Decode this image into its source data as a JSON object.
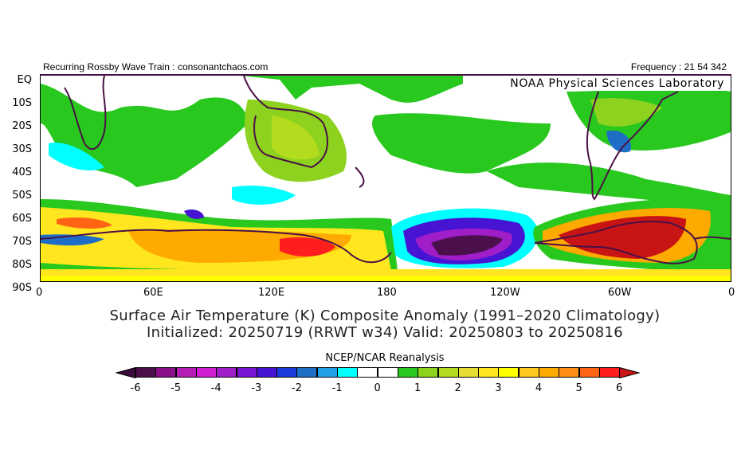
{
  "header": {
    "left": "Recurring Rossby Wave Train : consonantchaos.com",
    "right": "Frequency : 21 54 342",
    "lab": "NOAA Physical Sciences Laboratory"
  },
  "map": {
    "lat_labels": [
      "EQ",
      "10S",
      "20S",
      "30S",
      "40S",
      "50S",
      "60S",
      "70S",
      "80S",
      "90S"
    ],
    "lon_labels": [
      "0",
      "60E",
      "120E",
      "180",
      "120W",
      "60W",
      "0"
    ],
    "title_line1": "Surface Air Temperature (K) Composite Anomaly (1991–2020 Climatology)",
    "title_line2": "Initialized: 20250719 (RRWT w34) Valid: 20250803 to 20250816",
    "coast_color": "#4a1046"
  },
  "colorbar": {
    "title": "NCEP/NCAR Reanalysis",
    "ticks": [
      "-6",
      "-5",
      "-4",
      "-3",
      "-2",
      "-1",
      "0",
      "1",
      "2",
      "3",
      "4",
      "5",
      "6"
    ],
    "low_triangle": "#3c0a3c",
    "high_triangle": "#c81414",
    "colors": [
      "#4b0f4b",
      "#8c0f8c",
      "#b41eb4",
      "#d21ed2",
      "#a01ec8",
      "#7814d2",
      "#4614d2",
      "#1e3cdc",
      "#1e6ec8",
      "#1ea0e6",
      "#00ffff",
      "#ffffff",
      "#ffffff",
      "#28c81e",
      "#8cd21e",
      "#b4dc1e",
      "#e6dc32",
      "#ffe61e",
      "#ffff00",
      "#ffc81e",
      "#ffaa00",
      "#ff8c14",
      "#ff6414",
      "#ff1e1e"
    ]
  }
}
